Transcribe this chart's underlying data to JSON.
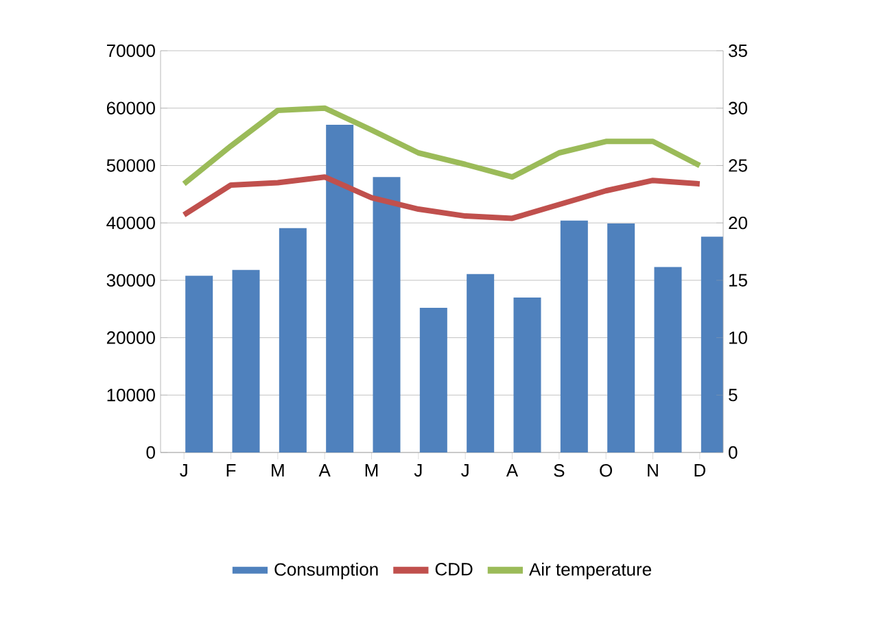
{
  "chart_data": {
    "type": "bar",
    "categories": [
      "J",
      "F",
      "M",
      "A",
      "M",
      "J",
      "J",
      "A",
      "S",
      "O",
      "N",
      "D"
    ],
    "series": [
      {
        "name": "Consumption",
        "color": "#4f81bd",
        "values": [
          30800,
          31800,
          39100,
          57100,
          48000,
          25200,
          31100,
          27000,
          40400,
          39900,
          32300,
          37600
        ]
      },
      {
        "name": "CDD",
        "type": "line",
        "axis": "y2",
        "color": "#c0504d",
        "values": [
          20.7,
          23.3,
          23.5,
          24.0,
          22.2,
          21.2,
          20.6,
          20.4,
          21.6,
          22.8,
          23.7,
          23.4
        ]
      },
      {
        "name": "Air temperature",
        "type": "line",
        "axis": "y2",
        "color": "#9bbb59",
        "values": [
          23.4,
          26.7,
          29.8,
          30.0,
          28.1,
          26.1,
          25.1,
          24.0,
          26.1,
          27.1,
          27.1,
          25.0
        ]
      }
    ],
    "ylim": [
      0,
      70000
    ],
    "yticks": [
      0,
      10000,
      20000,
      30000,
      40000,
      50000,
      60000,
      70000
    ],
    "y2lim": [
      0,
      35
    ],
    "y2ticks": [
      0,
      5,
      10,
      15,
      20,
      25,
      30,
      35
    ],
    "grid": "y",
    "legend": "bottom",
    "marker": "none",
    "line_style": "solid"
  }
}
